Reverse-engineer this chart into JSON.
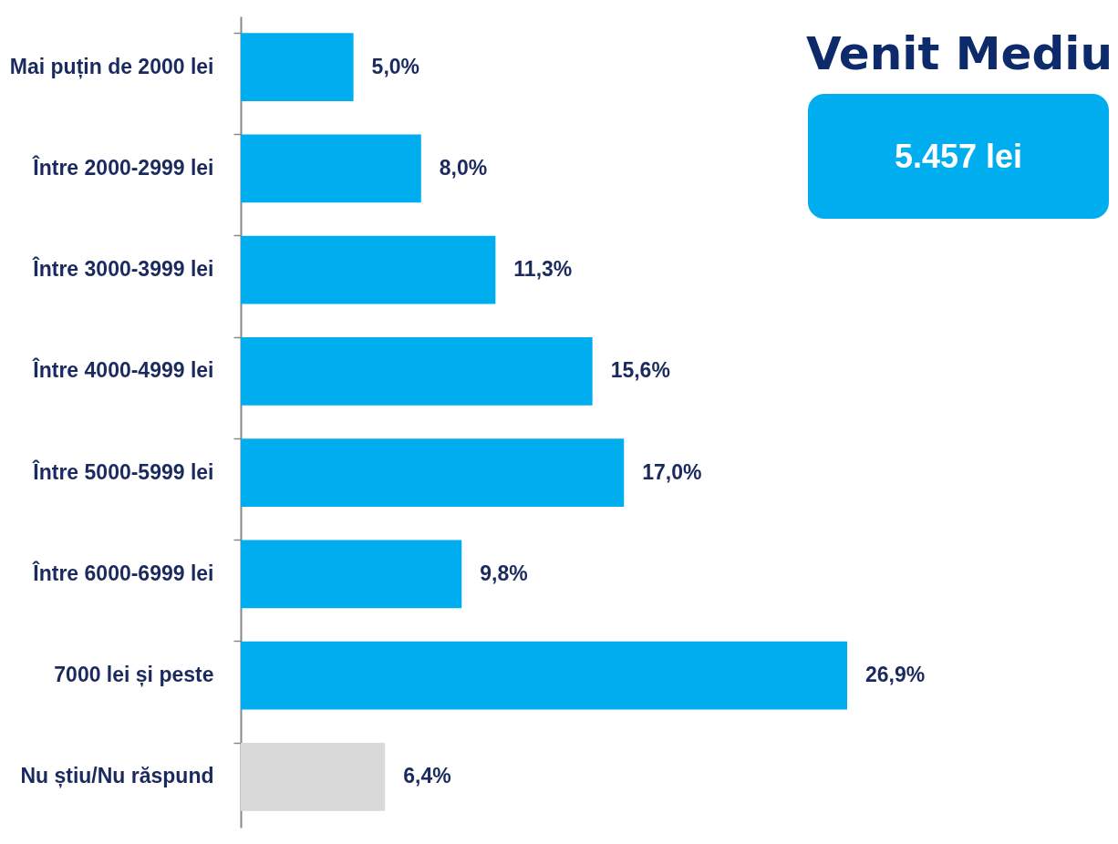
{
  "chart_data": {
    "type": "bar",
    "orientation": "horizontal",
    "categories": [
      "Mai puțin de 2000 lei",
      "Între 2000-2999 lei",
      "Între 3000-3999 lei",
      "Între 4000-4999 lei",
      "Între 5000-5999 lei",
      "Între 6000-6999 lei",
      "7000 lei și peste",
      "Nu știu/Nu răspund"
    ],
    "values": [
      5.0,
      8.0,
      11.3,
      15.6,
      17.0,
      9.8,
      26.9,
      6.4
    ],
    "colors": [
      "#00aeef",
      "#00aeef",
      "#00aeef",
      "#00aeef",
      "#00aeef",
      "#00aeef",
      "#00aeef",
      "#d9d9d9"
    ],
    "value_labels": [
      "5,0%",
      "8,0%",
      "11,3%",
      "15,6%",
      "17,0%",
      "9,8%",
      "26,9%",
      "6,4%"
    ],
    "annotations": [
      "Venit Mediu",
      "5.457 lei"
    ]
  }
}
